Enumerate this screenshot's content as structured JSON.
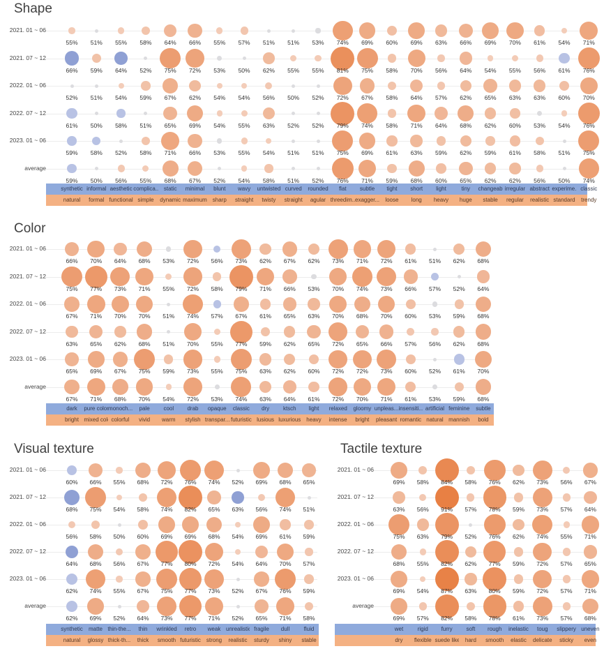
{
  "colors": {
    "positive": "#e8884f",
    "positive_light": "#f0c2a8",
    "negative": "#8fa0d4",
    "neutral": "#d9d9dc",
    "band_top": "#8faadc",
    "band_bottom": "#f4b183"
  },
  "row_labels": [
    "2021. 01 ~ 06",
    "2021. 07 ~ 12",
    "2022. 01 ~ 06",
    "2022. 07 ~ 12",
    "2023. 01 ~ 06",
    "average"
  ],
  "chart_data": [
    {
      "type": "bubble-matrix",
      "title": "Shape",
      "attributes_top": [
        "synthetic",
        "informal",
        "aesthetic",
        "complica...",
        "static",
        "minimal",
        "blunt",
        "wavy",
        "untwisted",
        "curved",
        "rounded",
        "flat",
        "subtle",
        "tight",
        "short",
        "light",
        "tiny",
        "changeab...",
        "irregular",
        "abstract",
        "experime...",
        "classic"
      ],
      "attributes_bottom": [
        "natural",
        "formal",
        "functional",
        "simple",
        "dynamic",
        "maximum",
        "sharp",
        "straight",
        "twisty",
        "straight",
        "agular",
        "threedim...",
        "exagger...",
        "loose",
        "long",
        "heavy",
        "huge",
        "stable",
        "regular",
        "realistic",
        "standard",
        "trendy"
      ],
      "rows": [
        {
          "period": "2021. 01 ~ 06",
          "values": [
            55,
            51,
            55,
            58,
            64,
            66,
            55,
            57,
            51,
            51,
            53,
            74,
            69,
            60,
            69,
            63,
            66,
            69,
            70,
            61,
            54,
            71
          ],
          "top_side": [
            false,
            false,
            false,
            false,
            false,
            false,
            false,
            false,
            false,
            false,
            false,
            false,
            false,
            false,
            false,
            false,
            false,
            false,
            false,
            false,
            false,
            false
          ]
        },
        {
          "period": "2021. 07 ~ 12",
          "values": [
            66,
            59,
            64,
            52,
            75,
            72,
            53,
            50,
            62,
            55,
            55,
            81,
            75,
            58,
            70,
            56,
            64,
            54,
            55,
            56,
            61,
            76
          ],
          "top_side": [
            true,
            false,
            true,
            false,
            false,
            false,
            false,
            false,
            false,
            false,
            false,
            false,
            false,
            false,
            false,
            false,
            false,
            false,
            false,
            false,
            true,
            false
          ]
        },
        {
          "period": "2022. 01 ~ 06",
          "values": [
            52,
            51,
            54,
            59,
            67,
            62,
            54,
            54,
            56,
            50,
            52,
            72,
            67,
            58,
            64,
            57,
            62,
            65,
            63,
            63,
            60,
            70
          ],
          "top_side": [
            false,
            false,
            false,
            false,
            false,
            false,
            false,
            false,
            false,
            false,
            false,
            false,
            false,
            false,
            false,
            false,
            false,
            false,
            false,
            false,
            false,
            false
          ]
        },
        {
          "period": "2022. 07 ~ 12",
          "values": [
            61,
            50,
            58,
            51,
            65,
            69,
            54,
            55,
            63,
            52,
            52,
            79,
            74,
            58,
            71,
            64,
            68,
            62,
            60,
            53,
            54,
            76
          ],
          "top_side": [
            true,
            false,
            true,
            false,
            false,
            false,
            false,
            false,
            false,
            false,
            false,
            false,
            false,
            false,
            false,
            false,
            false,
            false,
            false,
            false,
            false,
            false
          ]
        },
        {
          "period": "2023. 01 ~ 06",
          "values": [
            59,
            58,
            52,
            58,
            71,
            66,
            53,
            55,
            54,
            51,
            51,
            75,
            69,
            61,
            63,
            59,
            62,
            59,
            61,
            58,
            51,
            75
          ],
          "top_side": [
            true,
            true,
            false,
            false,
            false,
            false,
            false,
            false,
            false,
            false,
            false,
            false,
            false,
            false,
            false,
            false,
            false,
            false,
            false,
            false,
            false,
            false
          ]
        },
        {
          "period": "average",
          "values": [
            59,
            50,
            56,
            55,
            68,
            67,
            52,
            54,
            58,
            51,
            52,
            76,
            71,
            59,
            68,
            60,
            65,
            62,
            62,
            56,
            50,
            74
          ],
          "top_side": [
            true,
            false,
            false,
            false,
            false,
            false,
            false,
            false,
            false,
            false,
            false,
            false,
            false,
            false,
            false,
            false,
            false,
            false,
            false,
            false,
            false,
            false
          ]
        }
      ]
    },
    {
      "type": "bubble-matrix",
      "title": "Color",
      "attributes_top": [
        "dark",
        "pure color",
        "monoch...",
        "pale",
        "cool",
        "drab",
        "opaque",
        "classic",
        "dry",
        "ktsch",
        "light",
        "relaxed",
        "gloomy",
        "unpleas...",
        "insensiti...",
        "artificial",
        "feminine",
        "subtle"
      ],
      "attributes_bottom": [
        "bright",
        "mixed color",
        "colorful",
        "vivid",
        "warm",
        "stylish",
        "transpar...",
        "futuristic",
        "lusious",
        "luxurious",
        "heavy",
        "intense",
        "bright",
        "pleasant",
        "romantic",
        "natural",
        "mannish",
        "bold"
      ],
      "rows": [
        {
          "period": "2021. 01 ~ 06",
          "values": [
            66,
            70,
            64,
            68,
            53,
            72,
            56,
            73,
            62,
            67,
            62,
            73,
            71,
            72,
            61,
            51,
            62,
            68
          ],
          "top_side": [
            false,
            false,
            false,
            false,
            false,
            false,
            true,
            false,
            false,
            false,
            false,
            false,
            false,
            false,
            false,
            false,
            false,
            false
          ]
        },
        {
          "period": "2021. 07 ~ 12",
          "values": [
            75,
            77,
            73,
            71,
            55,
            72,
            58,
            79,
            71,
            66,
            53,
            70,
            74,
            73,
            66,
            57,
            52,
            64
          ],
          "top_side": [
            false,
            false,
            false,
            false,
            false,
            false,
            false,
            false,
            false,
            false,
            false,
            false,
            false,
            false,
            false,
            true,
            false,
            false
          ]
        },
        {
          "period": "2022. 01 ~ 06",
          "values": [
            67,
            71,
            70,
            70,
            51,
            74,
            57,
            67,
            61,
            65,
            63,
            70,
            68,
            70,
            60,
            53,
            59,
            68
          ],
          "top_side": [
            false,
            false,
            false,
            false,
            false,
            false,
            true,
            false,
            false,
            false,
            false,
            false,
            false,
            false,
            false,
            false,
            false,
            false
          ]
        },
        {
          "period": "2022. 07 ~ 12",
          "values": [
            63,
            65,
            62,
            68,
            51,
            70,
            55,
            77,
            59,
            62,
            65,
            72,
            65,
            66,
            57,
            56,
            62,
            68
          ],
          "top_side": [
            false,
            false,
            false,
            false,
            false,
            false,
            false,
            false,
            false,
            false,
            false,
            false,
            false,
            false,
            false,
            false,
            false,
            false
          ]
        },
        {
          "period": "2023. 01 ~ 06",
          "values": [
            65,
            69,
            67,
            75,
            59,
            73,
            55,
            75,
            63,
            62,
            60,
            72,
            72,
            73,
            60,
            52,
            61,
            70
          ],
          "top_side": [
            false,
            false,
            false,
            false,
            false,
            false,
            false,
            false,
            false,
            false,
            false,
            false,
            false,
            false,
            false,
            false,
            true,
            false
          ]
        },
        {
          "period": "average",
          "values": [
            67,
            71,
            68,
            70,
            54,
            72,
            53,
            74,
            63,
            64,
            61,
            72,
            70,
            71,
            61,
            53,
            59,
            68
          ],
          "top_side": [
            false,
            false,
            false,
            false,
            false,
            false,
            false,
            false,
            false,
            false,
            false,
            false,
            false,
            false,
            false,
            false,
            false,
            false
          ]
        }
      ]
    },
    {
      "type": "bubble-matrix",
      "title": "Visual texture",
      "attributes_top": [
        "synthetic",
        "matte",
        "thin-the...",
        "thin",
        "wrinkled",
        "retro",
        "weak",
        "unrealistic",
        "fragile",
        "dull",
        "fluid"
      ],
      "attributes_bottom": [
        "natural",
        "glossy",
        "thick-th...",
        "thick",
        "smooth",
        "futuristic",
        "strong",
        "realistic",
        "sturdy",
        "shiny",
        "stable"
      ],
      "rows": [
        {
          "period": "2021. 01 ~ 06",
          "values": [
            60,
            66,
            55,
            68,
            72,
            76,
            74,
            52,
            69,
            68,
            65
          ],
          "top_side": [
            true,
            false,
            false,
            false,
            false,
            false,
            false,
            false,
            false,
            false,
            false
          ]
        },
        {
          "period": "2021. 07 ~ 12",
          "values": [
            68,
            75,
            54,
            58,
            74,
            82,
            65,
            63,
            56,
            74,
            51
          ],
          "top_side": [
            true,
            false,
            false,
            false,
            false,
            false,
            false,
            true,
            false,
            false,
            false
          ]
        },
        {
          "period": "2022. 01 ~ 06",
          "values": [
            56,
            58,
            50,
            60,
            69,
            69,
            68,
            54,
            69,
            61,
            59
          ],
          "top_side": [
            false,
            false,
            false,
            false,
            false,
            false,
            false,
            false,
            false,
            false,
            false
          ]
        },
        {
          "period": "2022. 07 ~ 12",
          "values": [
            64,
            68,
            56,
            67,
            77,
            80,
            72,
            54,
            64,
            70,
            57
          ],
          "top_side": [
            true,
            false,
            false,
            false,
            false,
            false,
            false,
            false,
            false,
            false,
            false
          ]
        },
        {
          "period": "2023. 01 ~ 06",
          "values": [
            62,
            74,
            55,
            67,
            75,
            77,
            73,
            52,
            67,
            76,
            59
          ],
          "top_side": [
            true,
            false,
            false,
            false,
            false,
            false,
            false,
            false,
            false,
            false,
            false
          ]
        },
        {
          "period": "average",
          "values": [
            62,
            69,
            52,
            64,
            73,
            77,
            71,
            52,
            65,
            71,
            58
          ],
          "top_side": [
            true,
            false,
            false,
            false,
            false,
            false,
            false,
            false,
            false,
            false,
            false
          ]
        }
      ]
    },
    {
      "type": "bubble-matrix",
      "title": "Tactile texture",
      "attributes_top": [
        "wet",
        "rigid",
        "furry",
        "soft",
        "rough",
        "inelastic",
        "toug",
        "slippery",
        "uneven"
      ],
      "attributes_bottom": [
        "dry",
        "flexible",
        "suede like",
        "hard",
        "smooth",
        "elastic",
        "delicate",
        "sticky",
        "even"
      ],
      "rows": [
        {
          "period": "2021. 01 ~ 06",
          "values": [
            69,
            58,
            84,
            58,
            76,
            62,
            73,
            56,
            67
          ],
          "top_side": [
            false,
            false,
            false,
            false,
            false,
            false,
            false,
            false,
            false
          ]
        },
        {
          "period": "2021. 07 ~ 12",
          "values": [
            63,
            56,
            91,
            57,
            78,
            59,
            73,
            57,
            64
          ],
          "top_side": [
            false,
            false,
            false,
            false,
            false,
            false,
            false,
            false,
            false
          ]
        },
        {
          "period": "2022. 01 ~ 06",
          "values": [
            75,
            63,
            79,
            52,
            76,
            62,
            74,
            55,
            71
          ],
          "top_side": [
            false,
            false,
            false,
            false,
            false,
            false,
            false,
            false,
            false
          ]
        },
        {
          "period": "2022. 07 ~ 12",
          "values": [
            68,
            55,
            82,
            62,
            77,
            59,
            72,
            57,
            65
          ],
          "top_side": [
            false,
            false,
            false,
            false,
            false,
            false,
            false,
            false,
            false
          ]
        },
        {
          "period": "2023. 01 ~ 06",
          "values": [
            69,
            54,
            87,
            63,
            80,
            59,
            72,
            57,
            71
          ],
          "top_side": [
            false,
            false,
            false,
            false,
            false,
            false,
            false,
            false,
            false
          ]
        },
        {
          "period": "average",
          "values": [
            69,
            57,
            82,
            58,
            78,
            61,
            73,
            57,
            68
          ],
          "top_side": [
            false,
            false,
            false,
            false,
            false,
            false,
            false,
            false,
            false
          ]
        }
      ]
    }
  ]
}
